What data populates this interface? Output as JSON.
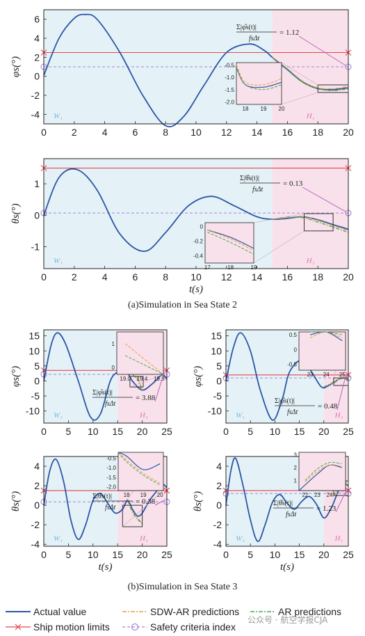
{
  "colors": {
    "actual": "#2b55a5",
    "limit": "#e8434c",
    "index": "#a684d6",
    "sdw": "#e3a33a",
    "ar": "#49a84b",
    "bgW": "#e4f2f7",
    "bgH": "#f9e1ec",
    "box": "#333333"
  },
  "captions": {
    "a": "(a)Simulation in Sea State 2",
    "b": "(b)Simulation in Sea State 3"
  },
  "legend": {
    "actual": "Actual value",
    "limits": "Ship motion limits",
    "sdw": "SDW-AR predictions",
    "index": "Safety criteria index",
    "ar": "AR predictions"
  },
  "watermark": "公众号 · 航空学报CJA",
  "chart_data": [
    {
      "id": "a1",
      "type": "line",
      "ylabel": "φs(°)",
      "xlabel": "",
      "xlim": [
        0,
        20
      ],
      "ylim": [
        -5,
        7
      ],
      "xticks": [
        0,
        2,
        4,
        6,
        8,
        10,
        12,
        14,
        16,
        18,
        20
      ],
      "yticks": [
        -4,
        -2,
        0,
        2,
        4,
        6
      ],
      "limit": 2.5,
      "criteria": 1.0,
      "split": 15,
      "labels": {
        "W": "W₁",
        "H": "H₁"
      },
      "series": {
        "actual": {
          "x": [
            0,
            1,
            2,
            2.7,
            3.5,
            5,
            6.5,
            8,
            9.2,
            10.5,
            12,
            13.5,
            14.5,
            15,
            16,
            17,
            18,
            19,
            20
          ],
          "y": [
            0.1,
            4,
            6.1,
            6.5,
            6,
            2.5,
            -2,
            -5.2,
            -4.2,
            -1,
            2.5,
            3.4,
            2.7,
            2,
            0.7,
            -0.6,
            -1.3,
            -1.4,
            -1.2
          ]
        },
        "sdw": {
          "x": [
            15,
            16,
            17,
            18,
            19,
            20
          ],
          "y": [
            2,
            0.8,
            -0.5,
            -1.2,
            -1.3,
            -1.05
          ]
        },
        "ar": {
          "x": [
            15,
            16,
            17,
            18,
            19,
            20
          ],
          "y": [
            2,
            0.75,
            -0.6,
            -1.3,
            -1.5,
            -1.3
          ]
        }
      },
      "annot": {
        "lhs": "Σ_{t=t0}^{t=t0+Δt}|φ̂s(t)| / fsΔt",
        "rhs": "= 1.12"
      },
      "inset": {
        "xlim": [
          17.5,
          20
        ],
        "ylim": [
          -2.1,
          -0.4
        ],
        "xticks": [
          18,
          19,
          20
        ],
        "yticks": [
          -0.5,
          -1,
          -1.5,
          -2
        ],
        "yticklabels": [
          "-0.5",
          "-1.0",
          "-1.5",
          "-2.0"
        ]
      }
    },
    {
      "id": "a2",
      "type": "line",
      "ylabel": "θs(°)",
      "xlabel": "t(s)",
      "xlim": [
        0,
        20
      ],
      "ylim": [
        -1.7,
        1.8
      ],
      "xticks": [
        0,
        2,
        4,
        6,
        8,
        10,
        12,
        14,
        16,
        18,
        20
      ],
      "yticks": [
        -1,
        0,
        1
      ],
      "limit": 1.5,
      "criteria": 0.07,
      "split": 15,
      "labels": {
        "W": "W₁",
        "H": "H₁"
      },
      "series": {
        "actual": {
          "x": [
            0,
            1,
            2.2,
            3.5,
            5,
            6.6,
            8,
            9.5,
            11,
            12.5,
            14,
            15,
            16,
            17,
            18,
            19,
            20
          ],
          "y": [
            0,
            1.2,
            1.45,
            0.8,
            -0.6,
            -1.15,
            -0.55,
            0.3,
            0.6,
            0.3,
            -0.05,
            -0.13,
            -0.1,
            -0.05,
            -0.15,
            -0.3,
            -0.45
          ]
        },
        "sdw": {
          "x": [
            15,
            16,
            17,
            18,
            19,
            20
          ],
          "y": [
            -0.13,
            -0.08,
            -0.05,
            -0.17,
            -0.33,
            -0.5
          ]
        },
        "ar": {
          "x": [
            15,
            16,
            17,
            18,
            19,
            20
          ],
          "y": [
            -0.13,
            -0.06,
            -0.08,
            -0.22,
            -0.38,
            -0.55
          ]
        }
      },
      "annot": {
        "lhs": "Σ_{t=t0}^{t=t0+Δt}|θ̂s(t)| / fsΔt",
        "rhs": "= 0.13"
      },
      "inset": {
        "xlim": [
          16.9,
          19
        ],
        "ylim": [
          -0.5,
          0.05
        ],
        "xticks": [
          17,
          18,
          19
        ],
        "xticklabels": [
          "17",
          "18",
          "19"
        ],
        "yticks": [
          0,
          -0.2,
          -0.4
        ],
        "yticklabels": [
          "0",
          "-0.2",
          "-0.4"
        ]
      }
    },
    {
      "id": "b1",
      "type": "line",
      "ylabel": "φs(°)",
      "xlabel": "",
      "xlim": [
        0,
        25
      ],
      "ylim": [
        -14,
        17
      ],
      "xticks": [
        0,
        5,
        10,
        15,
        20,
        25
      ],
      "yticks": [
        -10,
        -5,
        0,
        5,
        10,
        15
      ],
      "limit": 3.5,
      "criteria": 2.2,
      "split": 15,
      "labels": {
        "W": "W₁",
        "H": "H₁"
      },
      "series": {
        "actual": {
          "x": [
            0,
            1.5,
            2.8,
            4.5,
            7,
            9.5,
            11.5,
            13.5,
            15,
            16.5,
            18,
            20,
            22,
            24,
            25
          ],
          "y": [
            0,
            12,
            16,
            12,
            0,
            -12,
            -11,
            0,
            3,
            4,
            0,
            -3,
            -1,
            2,
            0.5
          ]
        },
        "sdw": {
          "x": [
            15,
            17,
            19,
            20
          ],
          "y": [
            3,
            3.5,
            1,
            -3
          ]
        },
        "ar": {
          "x": [
            15,
            17,
            19,
            20
          ],
          "y": [
            3,
            3.2,
            0.5,
            -3.5
          ]
        }
      },
      "annot": {
        "lhs": "Σ_{t=t0}^{t=t0+Δt}|φ̂s(t)| / fsΔt",
        "rhs": "= 3.88"
      },
      "inset": {
        "xlim": [
          18.8,
          19.9
        ],
        "ylim": [
          -0.3,
          1.5
        ],
        "xticks": [
          19.0,
          19.4,
          19.8
        ],
        "xticklabels": [
          "19.0",
          "19.4",
          "19.8"
        ],
        "yticks": [
          1,
          0
        ],
        "yticklabels": [
          "1",
          "0"
        ]
      }
    },
    {
      "id": "b2",
      "type": "line",
      "ylabel": "φs(°)",
      "xlabel": "",
      "xlim": [
        0,
        25
      ],
      "ylim": [
        -14,
        17
      ],
      "xticks": [
        0,
        5,
        10,
        15,
        20,
        25
      ],
      "yticks": [
        -10,
        -5,
        0,
        5,
        10,
        15
      ],
      "limit": 2.0,
      "criteria": 1.0,
      "split": 20,
      "labels": {
        "W": "W₁",
        "H": "H₁"
      },
      "series": {
        "actual": {
          "x": [
            0,
            1.5,
            3,
            5,
            7,
            9.5,
            11.5,
            13,
            15.5,
            17.5,
            19.5,
            21,
            23,
            24,
            25
          ],
          "y": [
            0,
            11,
            16,
            10,
            -3,
            -13,
            -6,
            3,
            7,
            3,
            -2,
            -1.5,
            0.5,
            1,
            0.3
          ]
        },
        "sdw": {
          "x": [
            20,
            21.5,
            23,
            24,
            25
          ],
          "y": [
            -2,
            -1,
            0.4,
            0.8,
            0.4
          ]
        },
        "ar": {
          "x": [
            20,
            21.5,
            23,
            24,
            25
          ],
          "y": [
            -2,
            -0.8,
            0.6,
            0.95,
            0.5
          ]
        }
      },
      "annot": {
        "lhs": "Σ_{t=t0}^{t=t0+Δt}|φ̂s(t)| / fsΔt",
        "rhs": "= 0.48"
      },
      "inset": {
        "xlim": [
          22.3,
          25.2
        ],
        "ylim": [
          -0.7,
          0.6
        ],
        "xticks": [
          23,
          24,
          25
        ],
        "yticks": [
          0.5,
          0,
          -0.5
        ],
        "yticklabels": [
          "0.5",
          "0",
          "-0.5"
        ]
      }
    },
    {
      "id": "b3",
      "type": "line",
      "ylabel": "θs(°)",
      "xlabel": "t(s)",
      "xlim": [
        0,
        25
      ],
      "ylim": [
        -4.2,
        5
      ],
      "xticks": [
        0,
        5,
        10,
        15,
        20,
        25
      ],
      "yticks": [
        -4,
        -2,
        0,
        2,
        4
      ],
      "limit": 1.5,
      "criteria": 0.35,
      "split": 15,
      "labels": {
        "W": "W₁",
        "H": "H₁"
      },
      "series": {
        "actual": {
          "x": [
            0,
            1.2,
            2.5,
            4,
            5.5,
            7,
            8.5,
            10,
            11.5,
            13,
            14.5,
            16,
            17,
            18,
            19,
            20,
            21.5,
            23,
            24,
            25
          ],
          "y": [
            0,
            3.5,
            4.7,
            2.5,
            -1.5,
            -3.5,
            -2,
            0.5,
            1.2,
            0.2,
            -0.8,
            -0.4,
            0.5,
            -0.4,
            -1.1,
            -0.8,
            0.5,
            1.5,
            2.2,
            1.8
          ]
        },
        "sdw": {
          "x": [
            17,
            18,
            19,
            20
          ],
          "y": [
            0.5,
            -0.6,
            -1.3,
            -1.8
          ]
        },
        "ar": {
          "x": [
            17,
            18,
            19,
            20
          ],
          "y": [
            0.5,
            -0.7,
            -1.4,
            -1.9
          ]
        }
      },
      "annot": {
        "lhs": "Σ_{t=t0}^{t=t0+Δt}|θ̂s(t)| / fsΔt",
        "rhs": "= 0.38"
      },
      "inset": {
        "xlim": [
          17.5,
          20.2
        ],
        "ylim": [
          -2.2,
          -0.2
        ],
        "xticks": [
          18,
          19,
          20
        ],
        "yticks": [
          -0.5,
          -1,
          -1.5,
          -2
        ],
        "yticklabels": [
          "-0.5",
          "-1.0",
          "-1.5",
          "-2.0"
        ]
      }
    },
    {
      "id": "b4",
      "type": "line",
      "ylabel": "θs(°)",
      "xlabel": "t(s)",
      "xlim": [
        0,
        25
      ],
      "ylim": [
        -4.2,
        5
      ],
      "xticks": [
        0,
        5,
        10,
        15,
        20,
        25
      ],
      "yticks": [
        -4,
        -2,
        0,
        2,
        4
      ],
      "limit": 1.5,
      "criteria": 1.2,
      "split": 20,
      "labels": {
        "W": "W₁",
        "H": "H₁"
      },
      "series": {
        "actual": {
          "x": [
            0,
            1,
            2,
            3.5,
            5,
            6.5,
            8,
            9.5,
            11,
            12.5,
            14,
            15.5,
            17,
            18.5,
            20,
            21.5,
            23,
            24,
            25
          ],
          "y": [
            0,
            3.5,
            4.8,
            2,
            -1.5,
            -3.7,
            -2,
            0.3,
            1.1,
            0.2,
            -0.4,
            0.4,
            0.9,
            0.1,
            -1.3,
            -0.3,
            1.5,
            2.2,
            2
          ]
        },
        "sdw": {
          "x": [
            22,
            23,
            24,
            25
          ],
          "y": [
            0.9,
            1.7,
            2.2,
            2.1
          ]
        },
        "ar": {
          "x": [
            22,
            23,
            24,
            25
          ],
          "y": [
            1.0,
            1.9,
            2.4,
            2.3
          ]
        }
      },
      "annot": {
        "lhs": "Σ_{t=t0}^{t=t0+Δt}|θ̂s(t)| / fsΔt",
        "rhs": "= 1.23"
      },
      "inset": {
        "xlim": [
          21.5,
          25.3
        ],
        "ylim": [
          0.2,
          3.2
        ],
        "xticks": [
          22,
          23,
          24
        ],
        "yticks": [
          3,
          2,
          1
        ],
        "yticklabels": [
          "3",
          "2",
          "1"
        ]
      }
    }
  ]
}
